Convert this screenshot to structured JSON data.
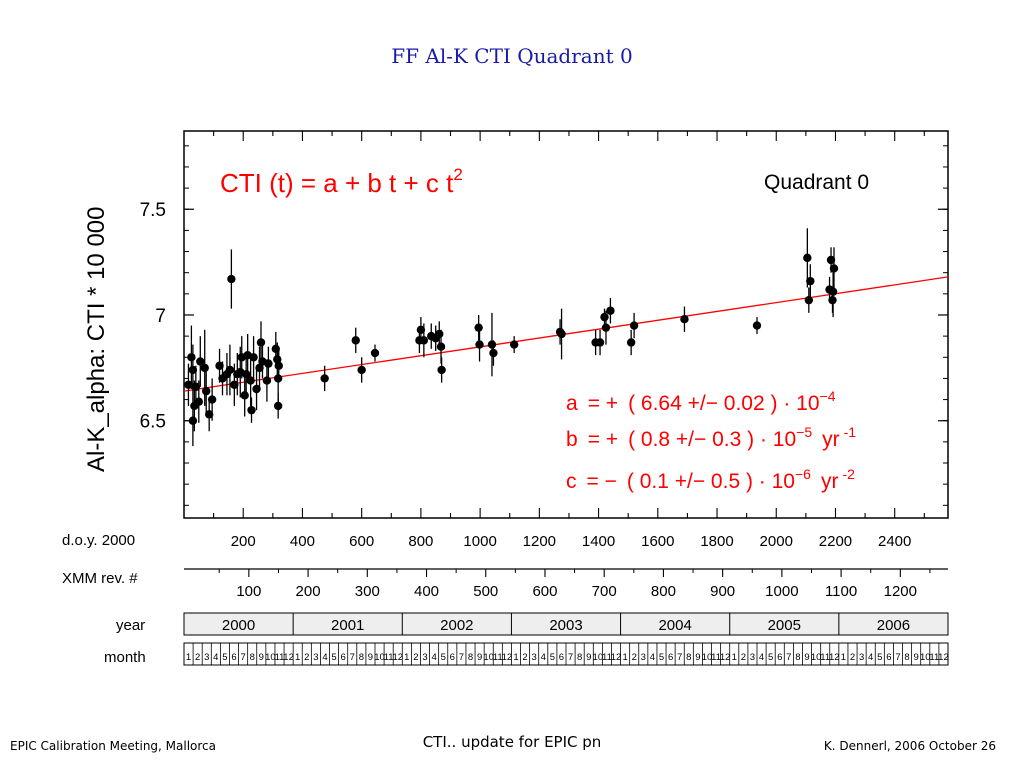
{
  "slide": {
    "title": "FF   Al-K   CTI   Quadrant 0",
    "footer_left": "EPIC Calibration Meeting, Mallorca",
    "footer_center": "CTI.. update for EPIC pn",
    "footer_right": "K. Dennerl, 2006 October 26"
  },
  "chart_data": {
    "type": "scatter",
    "ylabel": "Al-K_alpha:  CTI * 10 000",
    "panel_label": "Quadrant 0",
    "formula": "CTI (t)  =  a + b t + c t",
    "formula_exponent": "2",
    "fit_params": {
      "a": {
        "label": "a",
        "sign": "=  +",
        "text": "( 6.64 +/− 0.02 ) · 10",
        "exp": "−4",
        "unit": "",
        "unit_exp": ""
      },
      "b": {
        "label": "b",
        "sign": "=  +",
        "text": "( 0.8 +/− 0.3 ) · 10",
        "exp": "−5",
        "unit": "yr",
        "unit_exp": "-1"
      },
      "c": {
        "label": "c",
        "sign": "=  −",
        "text": "( 0.1 +/− 0.5 ) · 10",
        "exp": "−6",
        "unit": "yr",
        "unit_exp": "-2"
      }
    },
    "xlim": [
      0,
      2580
    ],
    "ylim": [
      6.04,
      7.87
    ],
    "yticks": [
      6.5,
      7,
      7.5
    ],
    "ytick_labels": [
      "6.5",
      "7",
      "7.5"
    ],
    "grid": false,
    "fit_line": {
      "color": "#ff0000",
      "x": [
        0,
        2580
      ],
      "y": [
        6.64,
        7.18
      ]
    },
    "axes": {
      "doy": {
        "label": "d.o.y. 2000",
        "ticks": [
          200,
          400,
          600,
          800,
          1000,
          1200,
          1400,
          1600,
          1800,
          2000,
          2200,
          2400
        ]
      },
      "rev": {
        "label": "XMM rev. #",
        "ticks": [
          100,
          200,
          300,
          400,
          500,
          600,
          700,
          800,
          900,
          1000,
          1100,
          1200
        ],
        "labels": [
          "100",
          "200",
          "300",
          "400",
          "500",
          "600",
          "700",
          "800",
          "900",
          "1000",
          "1100",
          "1200"
        ]
      },
      "year": {
        "label": "year",
        "values": [
          "2000",
          "2001",
          "2002",
          "2003",
          "2004",
          "2005",
          "2006"
        ]
      },
      "month": {
        "label": "month",
        "values": [
          "1",
          "2",
          "3",
          "4",
          "5",
          "6",
          "7",
          "8",
          "9",
          "10",
          "11",
          "12"
        ]
      }
    },
    "points": [
      {
        "x": 15,
        "y": 6.67,
        "e": 0.1
      },
      {
        "x": 25,
        "y": 6.8,
        "e": 0.15
      },
      {
        "x": 30,
        "y": 6.74,
        "e": 0.12
      },
      {
        "x": 35,
        "y": 6.57,
        "e": 0.12
      },
      {
        "x": 40,
        "y": 6.66,
        "e": 0.1
      },
      {
        "x": 30,
        "y": 6.5,
        "e": 0.12
      },
      {
        "x": 50,
        "y": 6.59,
        "e": 0.1
      },
      {
        "x": 55,
        "y": 6.78,
        "e": 0.12
      },
      {
        "x": 70,
        "y": 6.75,
        "e": 0.18
      },
      {
        "x": 75,
        "y": 6.64,
        "e": 0.1
      },
      {
        "x": 85,
        "y": 6.53,
        "e": 0.08
      },
      {
        "x": 95,
        "y": 6.6,
        "e": 0.1
      },
      {
        "x": 120,
        "y": 6.76,
        "e": 0.08
      },
      {
        "x": 130,
        "y": 6.7,
        "e": 0.08
      },
      {
        "x": 145,
        "y": 6.72,
        "e": 0.1
      },
      {
        "x": 155,
        "y": 6.74,
        "e": 0.12
      },
      {
        "x": 160,
        "y": 7.17,
        "e": 0.14
      },
      {
        "x": 170,
        "y": 6.67,
        "e": 0.1
      },
      {
        "x": 180,
        "y": 6.72,
        "e": 0.1
      },
      {
        "x": 190,
        "y": 6.73,
        "e": 0.12
      },
      {
        "x": 195,
        "y": 6.8,
        "e": 0.1
      },
      {
        "x": 205,
        "y": 6.62,
        "e": 0.1
      },
      {
        "x": 210,
        "y": 6.72,
        "e": 0.1
      },
      {
        "x": 215,
        "y": 6.81,
        "e": 0.1
      },
      {
        "x": 225,
        "y": 6.69,
        "e": 0.12
      },
      {
        "x": 228,
        "y": 6.55,
        "e": 0.06
      },
      {
        "x": 235,
        "y": 6.8,
        "e": 0.1
      },
      {
        "x": 245,
        "y": 6.65,
        "e": 0.1
      },
      {
        "x": 255,
        "y": 6.75,
        "e": 0.1
      },
      {
        "x": 260,
        "y": 6.87,
        "e": 0.1
      },
      {
        "x": 265,
        "y": 6.78,
        "e": 0.08
      },
      {
        "x": 280,
        "y": 6.69,
        "e": 0.1
      },
      {
        "x": 285,
        "y": 6.77,
        "e": 0.08
      },
      {
        "x": 310,
        "y": 6.84,
        "e": 0.08
      },
      {
        "x": 315,
        "y": 6.79,
        "e": 0.08
      },
      {
        "x": 318,
        "y": 6.7,
        "e": 0.12
      },
      {
        "x": 320,
        "y": 6.76,
        "e": 0.08
      },
      {
        "x": 318,
        "y": 6.57,
        "e": 0.06
      },
      {
        "x": 475,
        "y": 6.7,
        "e": 0.06
      },
      {
        "x": 580,
        "y": 6.88,
        "e": 0.06
      },
      {
        "x": 600,
        "y": 6.74,
        "e": 0.06
      },
      {
        "x": 645,
        "y": 6.82,
        "e": 0.04
      },
      {
        "x": 795,
        "y": 6.88,
        "e": 0.06
      },
      {
        "x": 800,
        "y": 6.93,
        "e": 0.06
      },
      {
        "x": 810,
        "y": 6.88,
        "e": 0.08
      },
      {
        "x": 835,
        "y": 6.9,
        "e": 0.06
      },
      {
        "x": 850,
        "y": 6.89,
        "e": 0.06
      },
      {
        "x": 862,
        "y": 6.91,
        "e": 0.06
      },
      {
        "x": 868,
        "y": 6.85,
        "e": 0.08
      },
      {
        "x": 870,
        "y": 6.74,
        "e": 0.06
      },
      {
        "x": 995,
        "y": 6.94,
        "e": 0.06
      },
      {
        "x": 998,
        "y": 6.86,
        "e": 0.08
      },
      {
        "x": 1040,
        "y": 6.86,
        "e": 0.15
      },
      {
        "x": 1045,
        "y": 6.82,
        "e": 0.06
      },
      {
        "x": 1115,
        "y": 6.86,
        "e": 0.04
      },
      {
        "x": 1270,
        "y": 6.92,
        "e": 0.06
      },
      {
        "x": 1275,
        "y": 6.91,
        "e": 0.12
      },
      {
        "x": 1390,
        "y": 6.87,
        "e": 0.06
      },
      {
        "x": 1405,
        "y": 6.87,
        "e": 0.06
      },
      {
        "x": 1420,
        "y": 6.99,
        "e": 0.04
      },
      {
        "x": 1425,
        "y": 6.94,
        "e": 0.08
      },
      {
        "x": 1440,
        "y": 7.02,
        "e": 0.06
      },
      {
        "x": 1510,
        "y": 6.87,
        "e": 0.06
      },
      {
        "x": 1520,
        "y": 6.95,
        "e": 0.06
      },
      {
        "x": 1690,
        "y": 6.98,
        "e": 0.06
      },
      {
        "x": 1935,
        "y": 6.95,
        "e": 0.04
      },
      {
        "x": 2105,
        "y": 7.27,
        "e": 0.14
      },
      {
        "x": 2110,
        "y": 7.07,
        "e": 0.06
      },
      {
        "x": 2115,
        "y": 7.16,
        "e": 0.08
      },
      {
        "x": 2180,
        "y": 7.12,
        "e": 0.06
      },
      {
        "x": 2185,
        "y": 7.26,
        "e": 0.06
      },
      {
        "x": 2190,
        "y": 7.07,
        "e": 0.06
      },
      {
        "x": 2192,
        "y": 7.11,
        "e": 0.12
      },
      {
        "x": 2195,
        "y": 7.22,
        "e": 0.1
      }
    ]
  }
}
